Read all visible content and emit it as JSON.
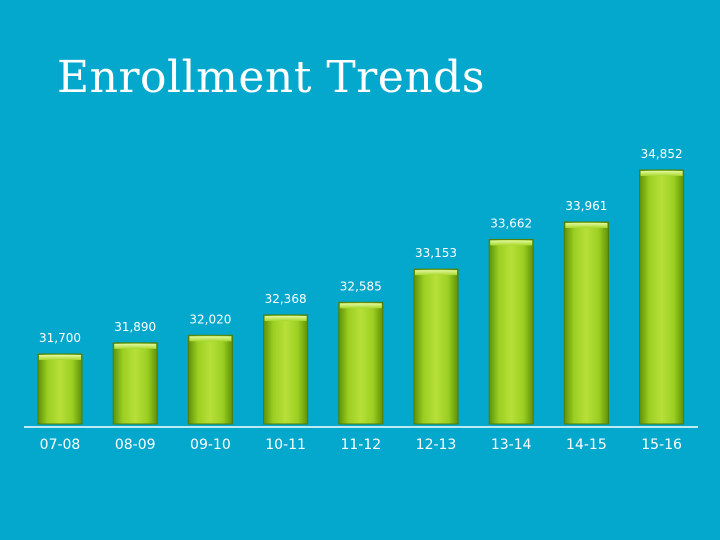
{
  "slide": {
    "title": "Enrollment Trends"
  },
  "colors": {
    "background": "#04a8cc",
    "bar_light": "#b6e036",
    "bar_mid": "#8cc41c",
    "bar_dark": "#5a8c06",
    "axis": "#ffffff"
  },
  "chart_data": {
    "type": "bar",
    "title": "Enrollment Trends",
    "xlabel": "",
    "ylabel": "",
    "categories": [
      "07-08",
      "08-09",
      "09-10",
      "10-11",
      "11-12",
      "12-13",
      "13-14",
      "14-15",
      "15-16"
    ],
    "values": [
      31700,
      31890,
      32020,
      32368,
      32585,
      33153,
      33662,
      33961,
      34852
    ],
    "value_labels": [
      "31,700",
      "31,890",
      "32,020",
      "32,368",
      "32,585",
      "33,153",
      "33,662",
      "33,961",
      "34,852"
    ],
    "ylim": [
      30500,
      34852
    ],
    "grid": false,
    "legend": "none"
  }
}
